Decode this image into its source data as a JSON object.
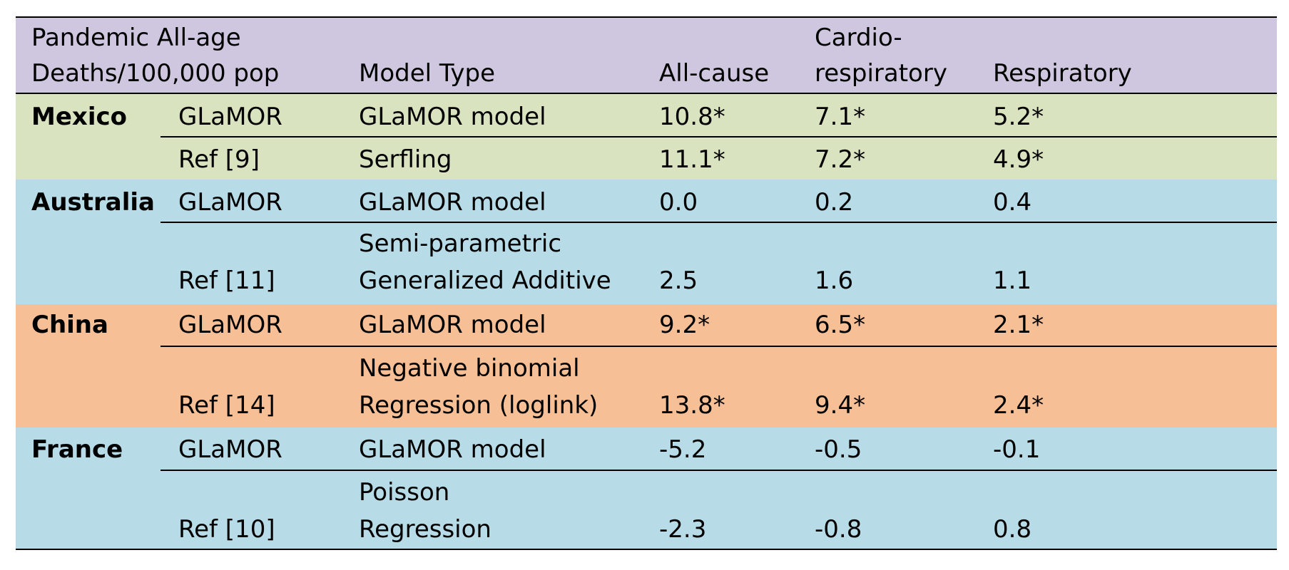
{
  "colors": {
    "header_bg": "#cfc7e0",
    "mexico_bg": "#d9e3bf",
    "australia_bg": "#b7dce8",
    "china_bg": "#f6bf95",
    "france_bg": "#b7dce8",
    "rule": "#000000"
  },
  "header": {
    "col1_line1": "Pandemic All-age",
    "col1_line2": "Deaths/100,000 pop",
    "model_type": "Model Type",
    "all_cause": "All-cause",
    "cardio_line1": "Cardio-",
    "cardio_line2": "respiratory",
    "respiratory": "Respiratory"
  },
  "countries": [
    {
      "name": "Mexico",
      "rows": [
        {
          "source": "GLaMOR",
          "model_line1": "",
          "model_line2": "GLaMOR model",
          "all_cause": "10.8*",
          "cardio": "7.1*",
          "resp": "5.2*"
        },
        {
          "source": "Ref [9]",
          "model_line1": "",
          "model_line2": "Serfling",
          "all_cause": "11.1*",
          "cardio": "7.2*",
          "resp": "4.9*"
        }
      ]
    },
    {
      "name": "Australia",
      "rows": [
        {
          "source": "GLaMOR",
          "model_line1": "",
          "model_line2": "GLaMOR model",
          "all_cause": "0.0",
          "cardio": "0.2",
          "resp": "0.4"
        },
        {
          "source": "Ref [11]",
          "model_line1": "Semi-parametric",
          "model_line2": "Generalized Additive",
          "all_cause": "2.5",
          "cardio": "1.6",
          "resp": "1.1"
        }
      ]
    },
    {
      "name": "China",
      "rows": [
        {
          "source": "GLaMOR",
          "model_line1": "",
          "model_line2": "GLaMOR model",
          "all_cause": "9.2*",
          "cardio": "6.5*",
          "resp": "2.1*"
        },
        {
          "source": "Ref [14]",
          "model_line1": "Negative binomial",
          "model_line2": "Regression (loglink)",
          "all_cause": "13.8*",
          "cardio": "9.4*",
          "resp": "2.4*"
        }
      ]
    },
    {
      "name": "France",
      "rows": [
        {
          "source": "GLaMOR",
          "model_line1": "",
          "model_line2": "GLaMOR model",
          "all_cause": "-5.2",
          "cardio": "-0.5",
          "resp": "-0.1"
        },
        {
          "source": "Ref [10]",
          "model_line1": "Poisson",
          "model_line2": "Regression",
          "all_cause": "-2.3",
          "cardio": "-0.8",
          "resp": "0.8"
        }
      ]
    }
  ]
}
